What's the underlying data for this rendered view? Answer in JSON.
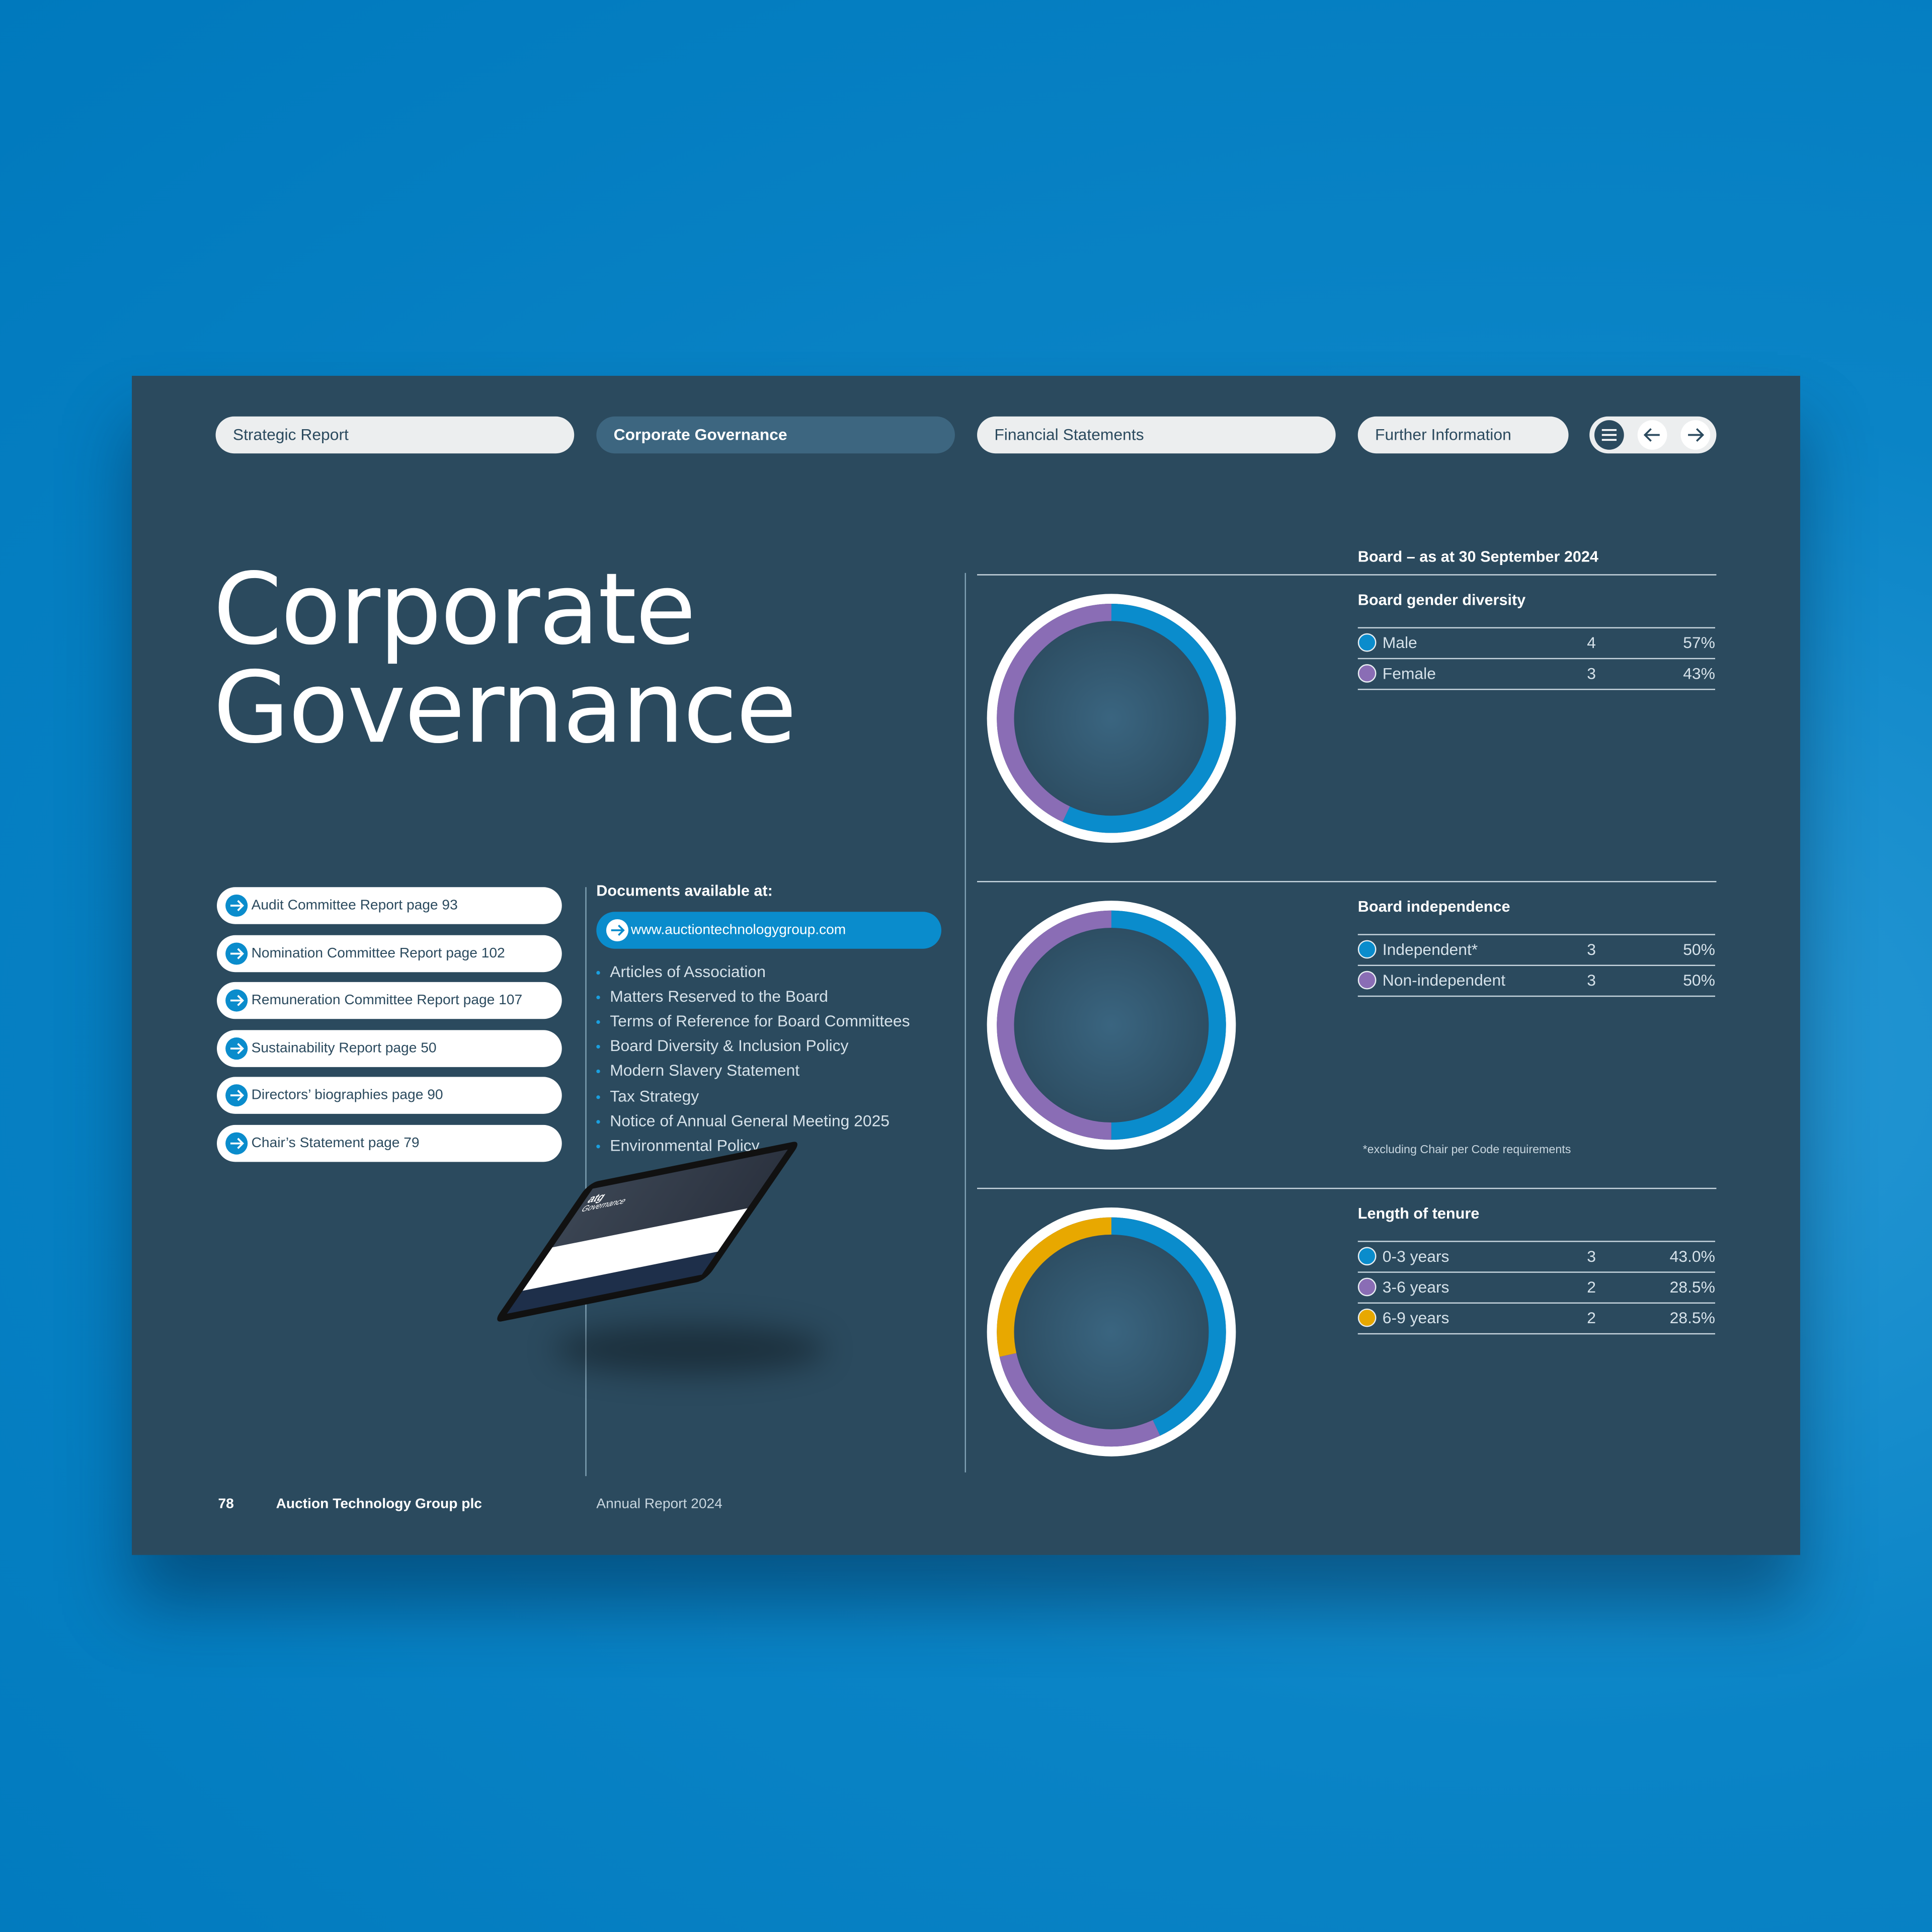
{
  "nav": {
    "tabs": [
      {
        "label": "Strategic Report",
        "active": false
      },
      {
        "label": "Corporate Governance",
        "active": true
      },
      {
        "label": "Financial Statements",
        "active": false
      },
      {
        "label": "Further Information",
        "active": false
      }
    ],
    "controls": [
      "menu-icon",
      "arrow-left-icon",
      "arrow-right-icon"
    ]
  },
  "title": {
    "line1": "Corporate",
    "line2": "Governance"
  },
  "links": [
    "Audit Committee Report page 93",
    "Nomination Committee Report page 102",
    "Remuneration Committee Report page 107",
    "Sustainability Report page 50",
    "Directors’ biographies page 90",
    "Chair’s Statement page 79"
  ],
  "documents": {
    "heading": "Documents available at:",
    "url": "www.auctiontechnologygroup.com",
    "items": [
      "Articles of Association",
      "Matters Reserved to the Board",
      "Terms of Reference for Board Committees",
      "Board Diversity & Inclusion Policy",
      "Modern Slavery Statement",
      "Tax Strategy",
      "Notice of Annual General Meeting 2025",
      "Environmental Policy"
    ],
    "tablet_text": "Governance"
  },
  "board_heading": "Board – as at 30 September 2024",
  "colors": {
    "blue": "#0a8ccc",
    "purple": "#8a6db5",
    "yellow": "#e8a800",
    "panel": "#2b4a5e"
  },
  "chart_data": [
    {
      "type": "pie",
      "title": "Board gender diversity",
      "rows": [
        {
          "label": "Male",
          "count": "4",
          "pct": "57%",
          "value": 57,
          "color": "#0a8ccc"
        },
        {
          "label": "Female",
          "count": "3",
          "pct": "43%",
          "value": 43,
          "color": "#8a6db5"
        }
      ]
    },
    {
      "type": "pie",
      "title": "Board independence",
      "rows": [
        {
          "label": "Independent*",
          "count": "3",
          "pct": "50%",
          "value": 50,
          "color": "#0a8ccc"
        },
        {
          "label": "Non-independent",
          "count": "3",
          "pct": "50%",
          "value": 50,
          "color": "#8a6db5"
        }
      ],
      "footnote": "*excluding Chair per Code requirements"
    },
    {
      "type": "pie",
      "title": "Length of tenure",
      "rows": [
        {
          "label": "0-3 years",
          "count": "3",
          "pct": "43.0%",
          "value": 43.0,
          "color": "#0a8ccc"
        },
        {
          "label": "3-6 years",
          "count": "2",
          "pct": "28.5%",
          "value": 28.5,
          "color": "#8a6db5"
        },
        {
          "label": "6-9 years",
          "count": "2",
          "pct": "28.5%",
          "value": 28.5,
          "color": "#e8a800"
        }
      ]
    }
  ],
  "footer": {
    "page": "78",
    "company": "Auction Technology Group plc",
    "report": "Annual Report 2024"
  }
}
